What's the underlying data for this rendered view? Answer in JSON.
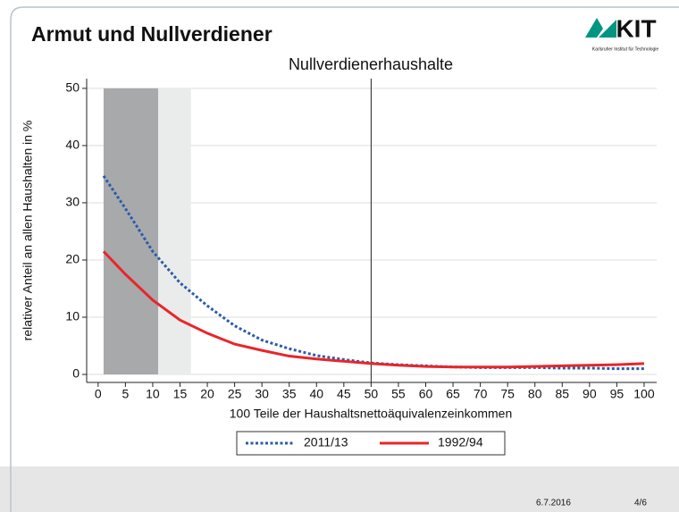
{
  "slide": {
    "title": "Armut und Nullverdiener",
    "logo": {
      "text": "KIT",
      "subtitle": "Karlsruher Institut für Technologie"
    },
    "date": "6.7.2016",
    "page": "4/6"
  },
  "chart_data": {
    "type": "line",
    "title": "Nullverdienerhaushalte",
    "x_label": "100 Teile der Haushaltsnettoäquivalenzeinkommen",
    "y_label": "relativer Anteil an allen Haushalten in %",
    "x": [
      1,
      5,
      10,
      15,
      20,
      25,
      30,
      35,
      40,
      45,
      50,
      55,
      60,
      65,
      70,
      75,
      80,
      85,
      90,
      95,
      100
    ],
    "series": [
      {
        "name": "2011/13",
        "color": "#2a5caa",
        "style": "dotted",
        "values": [
          34.7,
          29,
          21.5,
          16,
          12,
          8.5,
          6,
          4.5,
          3.3,
          2.6,
          2.0,
          1.7,
          1.5,
          1.3,
          1.2,
          1.2,
          1.2,
          1.1,
          1.1,
          1.0,
          1.0
        ]
      },
      {
        "name": "1992/94",
        "color": "#e8262a",
        "style": "solid",
        "values": [
          21.5,
          17.5,
          13,
          9.5,
          7.2,
          5.3,
          4.2,
          3.2,
          2.7,
          2.3,
          1.9,
          1.6,
          1.4,
          1.3,
          1.3,
          1.3,
          1.4,
          1.5,
          1.6,
          1.7,
          1.9
        ]
      }
    ],
    "shaded_regions": [
      {
        "x": [
          1,
          11
        ],
        "y": [
          0,
          50
        ],
        "color": "#a7a9ab"
      },
      {
        "x": [
          11,
          17
        ],
        "y": [
          0,
          50
        ],
        "color": "#eaebeb"
      }
    ],
    "vlines": [
      50
    ],
    "xlim": [
      -2.1,
      102.3
    ],
    "ylim": [
      -1.4,
      51.7
    ],
    "xticks": [
      0,
      5,
      10,
      15,
      20,
      25,
      30,
      35,
      40,
      45,
      50,
      55,
      60,
      65,
      70,
      75,
      80,
      85,
      90,
      95,
      100
    ],
    "yticks": [
      0,
      10,
      20,
      30,
      40,
      50
    ],
    "grid": true,
    "legend": "bottom"
  }
}
